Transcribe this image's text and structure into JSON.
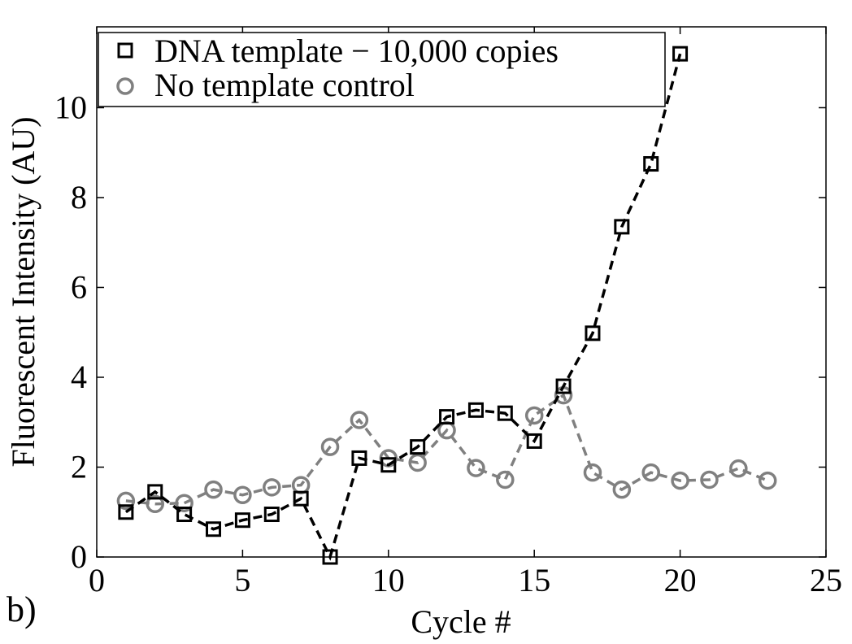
{
  "panel_label": "b)",
  "chart_data": {
    "type": "line",
    "title": "",
    "xlabel": "Cycle #",
    "ylabel": "Fluorescent Intensity (AU)",
    "xlim": [
      0,
      25
    ],
    "ylim": [
      0,
      11.8
    ],
    "xticks": [
      0,
      5,
      10,
      15,
      20,
      25
    ],
    "yticks": [
      0,
      2,
      4,
      6,
      8,
      10
    ],
    "grid": false,
    "legend_position": "top-left",
    "series": [
      {
        "name": "DNA template − 10,000 copies",
        "marker": "square",
        "line_style": "dashed",
        "color": "#000000",
        "x": [
          1,
          2,
          3,
          4,
          5,
          6,
          7,
          8,
          9,
          10,
          11,
          12,
          13,
          14,
          15,
          16,
          17,
          18,
          19,
          20
        ],
        "y": [
          1.0,
          1.45,
          0.95,
          0.62,
          0.82,
          0.95,
          1.3,
          0.0,
          2.2,
          2.05,
          2.45,
          3.12,
          3.27,
          3.2,
          2.58,
          3.8,
          4.98,
          7.35,
          8.75,
          11.2
        ]
      },
      {
        "name": "No template control",
        "marker": "circle",
        "line_style": "dashed",
        "color": "#808080",
        "x": [
          1,
          2,
          3,
          4,
          5,
          6,
          7,
          8,
          9,
          10,
          11,
          12,
          13,
          14,
          15,
          16,
          17,
          18,
          19,
          20,
          21,
          22,
          23
        ],
        "y": [
          1.25,
          1.18,
          1.2,
          1.5,
          1.38,
          1.55,
          1.6,
          2.45,
          3.05,
          2.2,
          2.1,
          2.82,
          1.98,
          1.72,
          3.15,
          3.6,
          1.88,
          1.5,
          1.88,
          1.7,
          1.72,
          1.97,
          1.7
        ]
      }
    ]
  }
}
